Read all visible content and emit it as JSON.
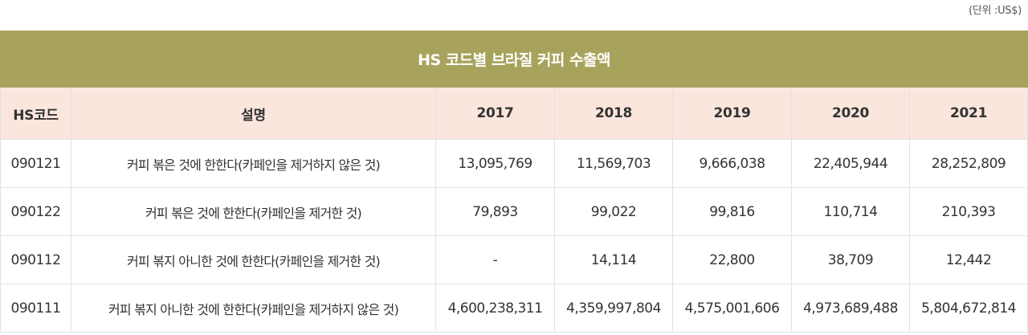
{
  "unit_note": "(단위 :US$)",
  "table": {
    "title": "HS 코드별 브라질 커피 수출액",
    "headers": [
      "HS코드",
      "설명",
      "2017",
      "2018",
      "2019",
      "2020",
      "2021"
    ],
    "rows": [
      [
        "090121",
        "커피 볶은 것에 한한다(카페인을 제거하지 않은 것)",
        "13,095,769",
        "11,569,703",
        "9,666,038",
        "22,405,944",
        "28,252,809"
      ],
      [
        "090122",
        "커피 볶은 것에 한한다(카페인을 제거한 것)",
        "79,893",
        "99,022",
        "99,816",
        "110,714",
        "210,393"
      ],
      [
        "090112",
        "커피 볶지 아니한 것에 한한다(카페인을 제거한 것)",
        "-",
        "14,114",
        "22,800",
        "38,709",
        "12,442"
      ],
      [
        "090111",
        "커피 볶지 아니한 것에 한한다(카페인을 제거하지 않은 것)",
        "4,600,238,311",
        "4,359,997,804",
        "4,575,001,606",
        "4,973,689,488",
        "5,804,672,814"
      ]
    ]
  }
}
